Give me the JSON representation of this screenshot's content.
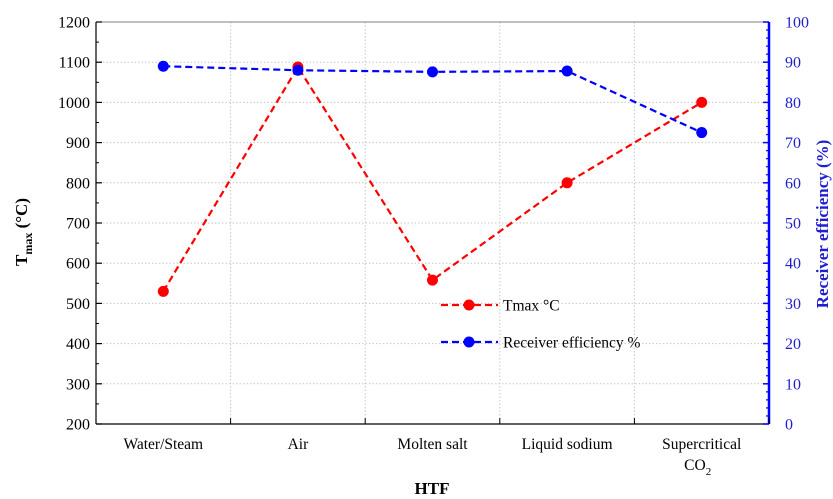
{
  "chart_data": {
    "type": "line",
    "title": "",
    "xlabel": "HTF",
    "categories": [
      "Water/Steam",
      "Air",
      "Molten salt",
      "Liquid sodium",
      "Supercritical CO₂"
    ],
    "category_lines": [
      [
        "Water/Steam"
      ],
      [
        "Air"
      ],
      [
        "Molten salt"
      ],
      [
        "Liquid sodium"
      ],
      [
        "Supercritical",
        "CO",
        "2"
      ]
    ],
    "y_left": {
      "label_main": "T",
      "label_sub": "max",
      "label_rest": " (°C)",
      "ylim": [
        200,
        1200
      ],
      "ticks": [
        "200",
        "300",
        "400",
        "500",
        "600",
        "700",
        "800",
        "900",
        "1000",
        "1100",
        "1200"
      ]
    },
    "y_right": {
      "label": "Receiver efficiency (%)",
      "ylim": [
        0,
        100
      ],
      "ticks": [
        "0",
        "10",
        "20",
        "30",
        "40",
        "50",
        "60",
        "70",
        "80",
        "90",
        "100"
      ]
    },
    "series": [
      {
        "name": "Tmax °C",
        "axis": "left",
        "color": "#ff0000",
        "line_style": "dashed",
        "values": [
          530,
          1088,
          558,
          800,
          1000
        ]
      },
      {
        "name": "Receiver efficiency %",
        "axis": "right",
        "color": "#0000ff",
        "line_style": "dashed",
        "values": [
          89,
          88,
          87.6,
          87.8,
          72.5
        ]
      }
    ],
    "grid": true,
    "legend_position": "center-right"
  },
  "colors": {
    "tmax": "#ff0000",
    "efficiency": "#0000ff",
    "right_axis": "#1f1fd0",
    "grid": "#c8c8c8"
  }
}
